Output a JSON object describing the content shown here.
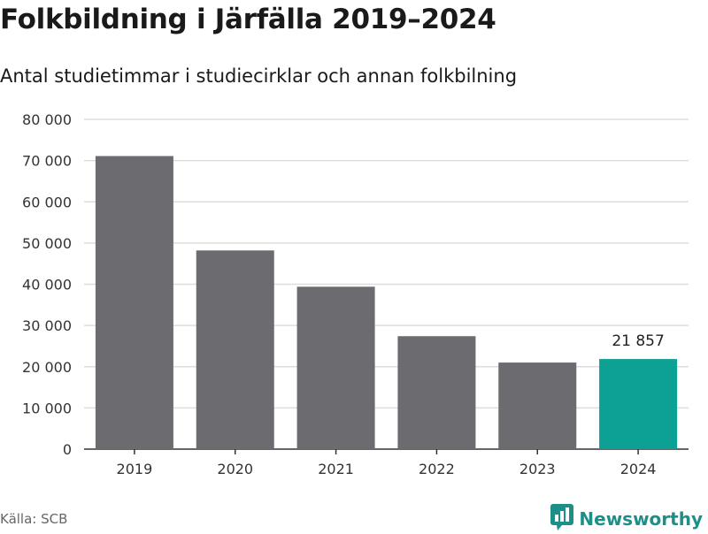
{
  "title": "Folkbildning i Järfälla 2019–2024",
  "subtitle": "Antal studietimmar i studiecirklar och annan folkbilning",
  "source": "Källa: SCB",
  "brand": {
    "name": "Newsworthy",
    "icon": "bar-chart-logo-icon",
    "color": "#1d8f89"
  },
  "chart_data": {
    "type": "bar",
    "categories": [
      "2019",
      "2020",
      "2021",
      "2022",
      "2023",
      "2024"
    ],
    "values": [
      71100,
      48200,
      39400,
      27400,
      21000,
      21857
    ],
    "ylim": [
      0,
      80000
    ],
    "yticks": [
      0,
      10000,
      20000,
      30000,
      40000,
      50000,
      60000,
      70000,
      80000
    ],
    "ytick_labels": [
      "0",
      "10 000",
      "20 000",
      "30 000",
      "40 000",
      "50 000",
      "60 000",
      "70 000",
      "80 000"
    ],
    "grid": true,
    "bar_color": "#6c6b70",
    "highlight_color": "#0da195",
    "highlight_index": 5,
    "data_labels": [
      {
        "index": 5,
        "text": "21 857"
      }
    ]
  }
}
